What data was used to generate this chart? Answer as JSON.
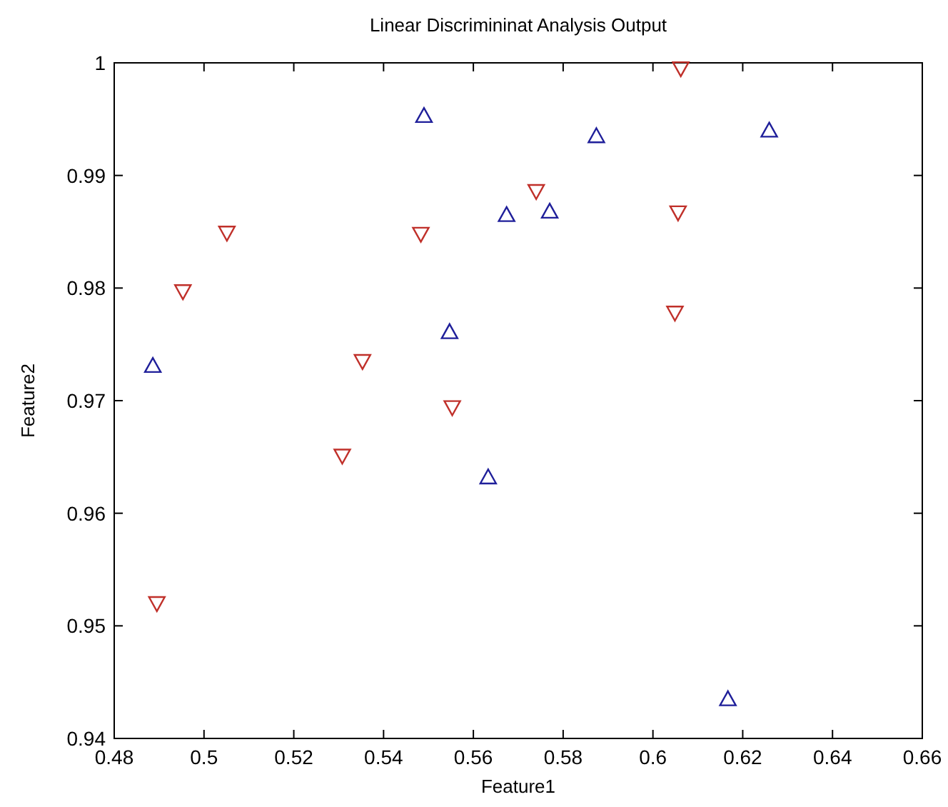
{
  "chart_data": {
    "type": "scatter",
    "title": "Linear Discrimininat Analysis Output",
    "xlabel": "Feature1",
    "ylabel": "Feature2",
    "xlim": [
      0.48,
      0.66
    ],
    "xticks": [
      0.48,
      0.5,
      0.52,
      0.54,
      0.56,
      0.58,
      0.6,
      0.62,
      0.64,
      0.66
    ],
    "ylim": [
      0.94,
      1
    ],
    "yticks": [
      0.94,
      0.95,
      0.96,
      0.97,
      0.98,
      0.99,
      1
    ],
    "series": [
      {
        "color": "#1f1f9a",
        "marker": "triangle",
        "x": [
          0.4886,
          0.549,
          0.5547,
          0.5674,
          0.577,
          0.5874,
          0.6259,
          0.5633,
          0.6167
        ],
        "values": [
          0.9731,
          0.9953,
          0.9761,
          0.9865,
          0.9868,
          0.9935,
          0.994,
          0.9632,
          0.9435
        ]
      },
      {
        "color": "#c0302a",
        "marker": "triangle-down",
        "x": [
          0.5051,
          0.4953,
          0.5483,
          0.5353,
          0.5553,
          0.5308,
          0.4895,
          0.6062,
          0.574,
          0.6056,
          0.6049
        ],
        "values": [
          0.9849,
          0.9797,
          0.9848,
          0.9735,
          0.9694,
          0.9651,
          0.952,
          0.9995,
          0.9886,
          0.9867,
          0.9778
        ]
      }
    ]
  }
}
